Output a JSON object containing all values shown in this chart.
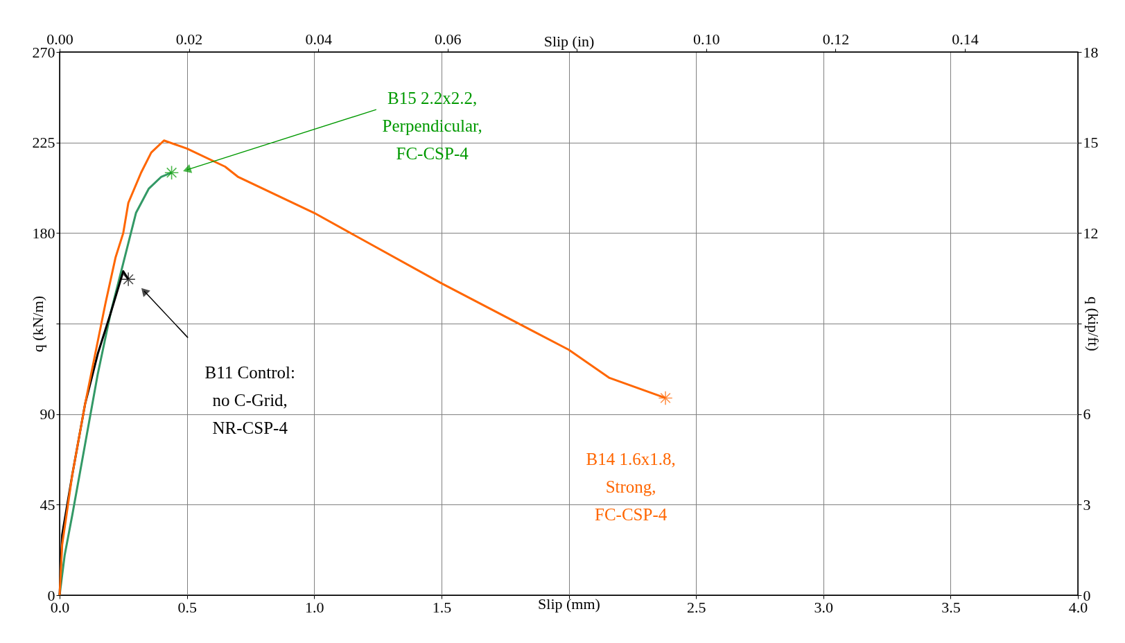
{
  "chart_data": {
    "type": "line",
    "xlabel": "Slip (mm)",
    "ylabel": "q (kN/m)",
    "x2label": "Slip (in)",
    "y2label": "q (kip/ft)",
    "xlim": [
      0,
      4
    ],
    "xticks": [
      {
        "value": 0,
        "label": "0.0"
      },
      0.5,
      {
        "value": 1,
        "label": "1.0"
      },
      1.5,
      {
        "value": 2,
        "label": null
      },
      2.5,
      {
        "value": 3,
        "label": "3.0"
      },
      3.5,
      {
        "value": 4,
        "label": "4.0"
      }
    ],
    "ylim": [
      0,
      270
    ],
    "yticks": [
      0,
      45,
      90,
      {
        "value": 135,
        "label": null
      },
      180,
      225,
      270
    ],
    "x2lim": [
      0,
      0.15748
    ],
    "x2ticks": [
      {
        "value": 0,
        "label": "0.00"
      },
      0.02,
      0.04,
      0.06,
      {
        "value": 0.08,
        "label": null
      },
      {
        "value": 0.1,
        "label": "0.10"
      },
      0.12,
      0.14
    ],
    "y2lim": [
      0,
      18
    ],
    "y2ticks": [
      0,
      3,
      6,
      {
        "value": 9,
        "label": null
      },
      12,
      15,
      18
    ],
    "grid": true,
    "line_style": "solid",
    "series": [
      {
        "color": "#339966",
        "x": [
          0,
          0.02,
          0.05,
          0.1,
          0.15,
          0.2,
          0.25,
          0.3,
          0.35,
          0.4,
          0.44
        ],
        "values": [
          0,
          20,
          40,
          75,
          110,
          140,
          165,
          190,
          202,
          208,
          210
        ]
      },
      {
        "color": "#000000",
        "x": [
          0,
          0.01,
          0.05,
          0.1,
          0.15,
          0.2,
          0.25,
          0.27
        ],
        "values": [
          0,
          30,
          60,
          95,
          120,
          140,
          161,
          157
        ]
      },
      {
        "color": "#ff6600",
        "x": [
          0,
          0.01,
          0.05,
          0.1,
          0.14,
          0.18,
          0.22,
          0.25,
          0.27,
          0.32,
          0.36,
          0.41,
          0.5,
          0.65,
          0.7,
          1.0,
          1.5,
          2.0,
          2.16,
          2.38
        ],
        "values": [
          0,
          25,
          60,
          95,
          120,
          145,
          168,
          180,
          195,
          210,
          220,
          226,
          222,
          213,
          208,
          190,
          155,
          122,
          108,
          98
        ]
      },
      {
        "type": "scatter",
        "marker": "cross",
        "color": "#009900",
        "x": [
          0.44
        ],
        "values": [
          210
        ]
      },
      {
        "type": "scatter",
        "marker": "cross",
        "color": "#000000",
        "x": [
          0.27
        ],
        "values": [
          157
        ]
      },
      {
        "type": "scatter",
        "marker": "cross",
        "color": "#ff6600",
        "x": [
          2.38
        ],
        "values": [
          98
        ]
      }
    ],
    "annotations": [
      "B15 2.2x2.2,\nPerpendicular,\nFC-CSP-4",
      "B11 Control:\nno C-Grid,\nNR-CSP-4",
      "B14 1.6x1.8,\nStrong,\nFC-CSP-4"
    ]
  }
}
